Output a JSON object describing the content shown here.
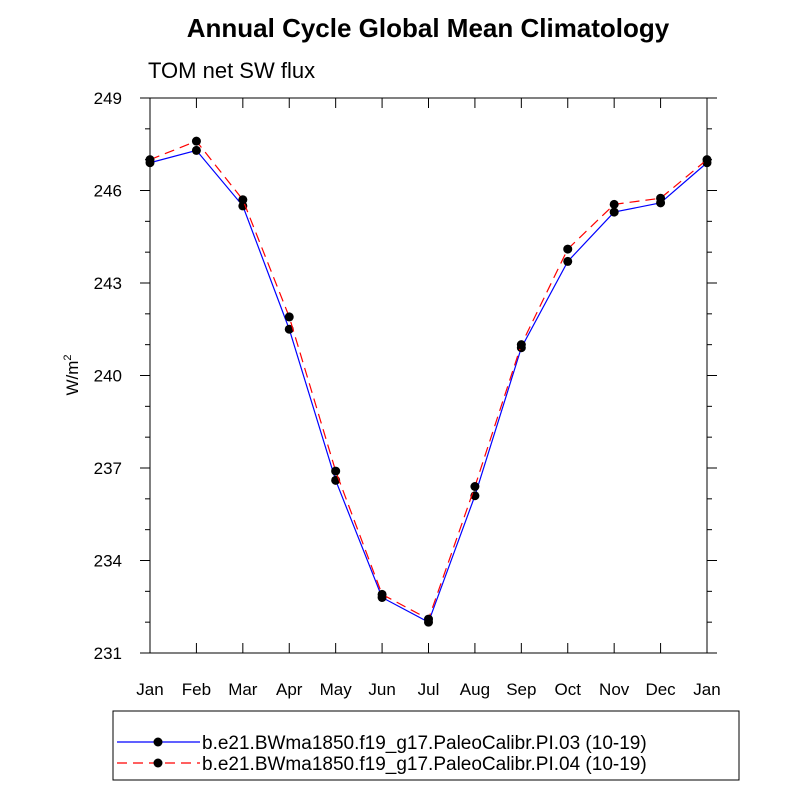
{
  "chart_data": {
    "type": "line",
    "title": "Annual Cycle Global Mean Climatology",
    "subtitle": "TOM net SW flux",
    "ylabel": "W/m",
    "ylabel_sup": "2",
    "xlabel": "",
    "ylim": [
      231,
      249
    ],
    "yticks": [
      231,
      234,
      237,
      240,
      243,
      246,
      249
    ],
    "categories": [
      "Jan",
      "Feb",
      "Mar",
      "Apr",
      "May",
      "Jun",
      "Jul",
      "Aug",
      "Sep",
      "Oct",
      "Nov",
      "Dec",
      "Jan"
    ],
    "grid": false,
    "legend_position": "bottom",
    "series": [
      {
        "name": "b.e21.BWma1850.f19_g17.PaleoCalibr.PI.03 (10-19)",
        "color": "#0000ff",
        "line_style": "solid",
        "marker": "filled-circle",
        "values": [
          246.9,
          247.3,
          245.5,
          241.5,
          236.6,
          232.8,
          232.0,
          236.1,
          240.9,
          243.7,
          245.3,
          245.6,
          246.9
        ]
      },
      {
        "name": "b.e21.BWma1850.f19_g17.PaleoCalibr.PI.04 (10-19)",
        "color": "#ff0000",
        "line_style": "dashed",
        "marker": "filled-circle",
        "values": [
          247.0,
          247.6,
          245.7,
          241.9,
          236.9,
          232.9,
          232.1,
          236.4,
          241.0,
          244.1,
          245.55,
          245.75,
          247.0
        ]
      }
    ]
  }
}
